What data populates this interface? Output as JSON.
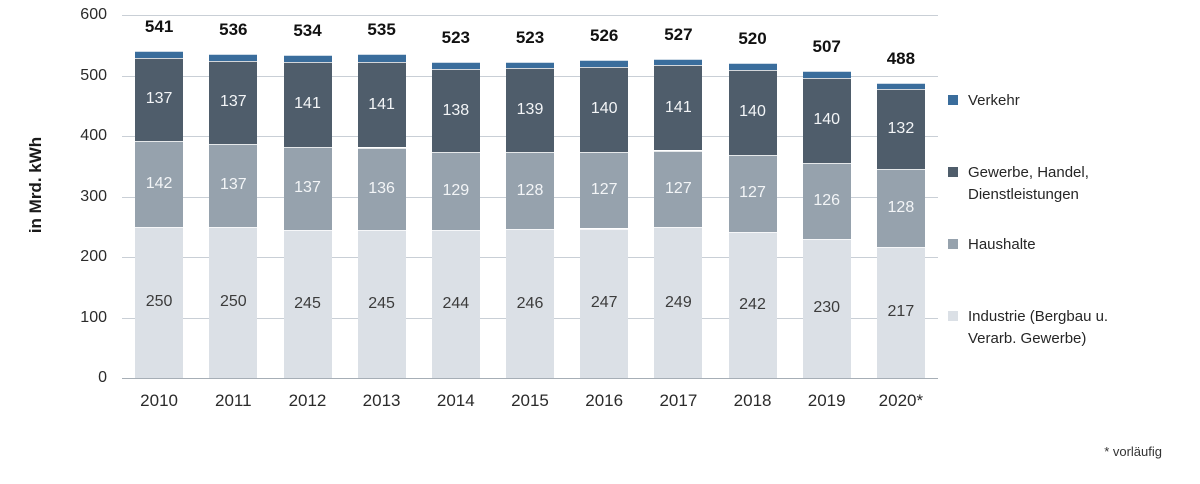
{
  "chart_data": {
    "type": "bar",
    "stacked": true,
    "title": "",
    "ylabel": "in Mrd. kWh",
    "xlabel": "",
    "ylim": [
      0,
      600
    ],
    "yticks": [
      0,
      100,
      200,
      300,
      400,
      500,
      600
    ],
    "grid": true,
    "legend_position": "right",
    "footnote": "* vorläufig",
    "categories": [
      "2010",
      "2011",
      "2012",
      "2013",
      "2014",
      "2015",
      "2016",
      "2017",
      "2018",
      "2019",
      "2020*"
    ],
    "totals": [
      541,
      536,
      534,
      535,
      523,
      523,
      526,
      527,
      520,
      507,
      488
    ],
    "series": [
      {
        "key": "industrie",
        "name": "Industrie (Bergbau u. Verarb. Gewerbe)",
        "values": [
          250,
          250,
          245,
          245,
          244,
          246,
          247,
          249,
          242,
          230,
          217
        ],
        "color": "#dbe0e6",
        "label_color": "#3c3c3c",
        "labels_shown": true
      },
      {
        "key": "haushalte",
        "name": "Haushalte",
        "values": [
          142,
          137,
          137,
          136,
          129,
          128,
          127,
          127,
          127,
          126,
          128
        ],
        "color": "#96a2ad",
        "label_color": "#f3f5f7",
        "labels_shown": true
      },
      {
        "key": "gewerbe",
        "name": "Gewerbe, Handel, Dienstleistungen",
        "values": [
          137,
          137,
          141,
          141,
          138,
          139,
          140,
          141,
          140,
          140,
          132
        ],
        "color": "#4f5d6b",
        "label_color": "#f3f5f7",
        "labels_shown": true
      },
      {
        "key": "verkehr",
        "name": "Verkehr",
        "values": [
          12,
          12,
          11,
          13,
          12,
          10,
          12,
          10,
          11,
          11,
          11
        ],
        "color": "#3a6d9c",
        "labels_shown": false,
        "values_estimated": true
      }
    ]
  },
  "legend": {
    "items": [
      {
        "key": "verkehr",
        "color": "#3a6d9c",
        "lines": [
          "Verkehr"
        ]
      },
      {
        "key": "gewerbe",
        "color": "#4f5d6b",
        "lines": [
          "Gewerbe, Handel,",
          "Dienstleistungen"
        ]
      },
      {
        "key": "haushalte",
        "color": "#96a2ad",
        "lines": [
          "Haushalte"
        ]
      },
      {
        "key": "industrie",
        "color": "#dbe0e6",
        "lines": [
          "Industrie (Bergbau u.",
          "Verarb. Gewerbe)"
        ]
      }
    ]
  }
}
